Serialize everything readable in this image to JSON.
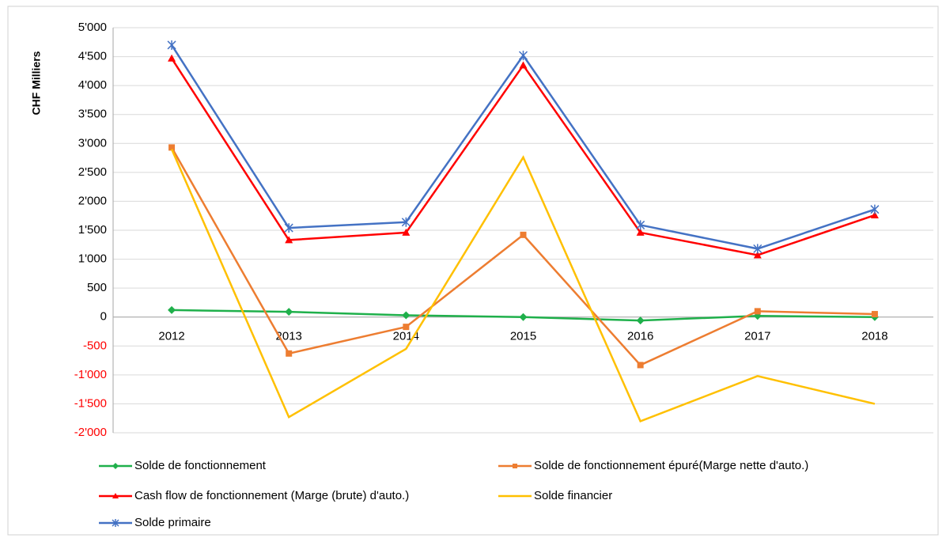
{
  "chart_data": {
    "type": "line",
    "y_axis_label": "CHF Milliers",
    "categories": [
      "2012",
      "2013",
      "2014",
      "2015",
      "2016",
      "2017",
      "2018"
    ],
    "ylim": [
      -2000,
      5000
    ],
    "yticks": [
      {
        "value": 5000,
        "label": "5'000"
      },
      {
        "value": 4500,
        "label": "4'500"
      },
      {
        "value": 4000,
        "label": "4'000"
      },
      {
        "value": 3500,
        "label": "3'500"
      },
      {
        "value": 3000,
        "label": "3'000"
      },
      {
        "value": 2500,
        "label": "2'500"
      },
      {
        "value": 2000,
        "label": "2'000"
      },
      {
        "value": 1500,
        "label": "1'500"
      },
      {
        "value": 1000,
        "label": "1'000"
      },
      500,
      0,
      -500,
      {
        "value": -1000,
        "label": "-1'000"
      },
      {
        "value": -1500,
        "label": "-1'500"
      },
      {
        "value": -2000,
        "label": "-2'000"
      }
    ],
    "negative_tick_color": "#ff0000",
    "grid": true,
    "legend": "bottom",
    "series": [
      {
        "name": "Solde de fonctionnement",
        "color": "#1fb04b",
        "marker": "diamond",
        "values": [
          120,
          90,
          30,
          0,
          -60,
          20,
          0
        ]
      },
      {
        "name": "Solde de fonctionnement épuré(Marge nette d'auto.)",
        "color": "#ed7d31",
        "marker": "square",
        "values": [
          2930,
          -630,
          -170,
          1420,
          -830,
          100,
          50
        ]
      },
      {
        "name": "Cash flow de fonctionnement (Marge (brute) d'auto.)",
        "color": "#ff0000",
        "marker": "triangle",
        "values": [
          4470,
          1330,
          1460,
          4350,
          1460,
          1070,
          1760
        ]
      },
      {
        "name": "Solde financier",
        "color": "#ffc000",
        "marker": "none",
        "values": [
          2900,
          -1730,
          -550,
          2760,
          -1800,
          -1020,
          -1500
        ]
      },
      {
        "name": "Solde primaire",
        "color": "#4472c4",
        "marker": "star",
        "values": [
          4700,
          1540,
          1640,
          4520,
          1590,
          1180,
          1860
        ]
      }
    ]
  }
}
